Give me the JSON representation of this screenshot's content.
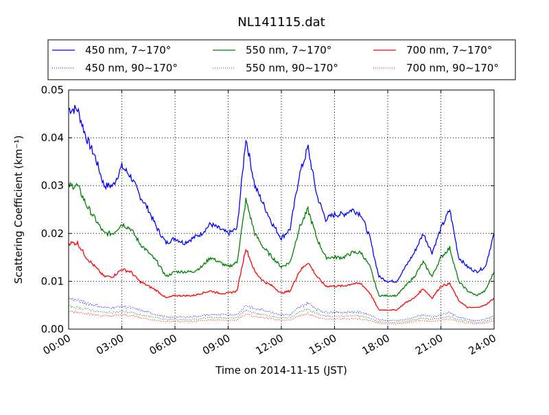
{
  "chart_data": {
    "type": "line",
    "title": "NL141115.dat",
    "xlabel": "Time on 2014-11-15 (JST)",
    "ylabel": "Scattering Coefficient (km⁻¹)",
    "xlim": [
      0,
      24
    ],
    "ylim": [
      0,
      0.05
    ],
    "grid": true,
    "legend_placement": "top, above plot, 3 columns",
    "x_ticks": [
      0,
      3,
      6,
      9,
      12,
      15,
      18,
      21,
      24
    ],
    "x_tick_labels": [
      "00:00",
      "03:00",
      "06:00",
      "09:00",
      "12:00",
      "15:00",
      "18:00",
      "21:00",
      "24:00"
    ],
    "y_ticks": [
      0,
      0.01,
      0.02,
      0.03,
      0.04,
      0.05
    ],
    "y_tick_labels": [
      "0.00",
      "0.01",
      "0.02",
      "0.03",
      "0.04",
      "0.05"
    ],
    "x_step_hours": 0.5,
    "series": [
      {
        "name": "450 nm, 7∼170°",
        "color": "#0000ff",
        "style": "solid",
        "values": [
          0.046,
          0.046,
          0.04,
          0.036,
          0.03,
          0.03,
          0.034,
          0.032,
          0.028,
          0.025,
          0.021,
          0.018,
          0.019,
          0.018,
          0.019,
          0.02,
          0.022,
          0.021,
          0.02,
          0.021,
          0.04,
          0.03,
          0.026,
          0.022,
          0.019,
          0.021,
          0.032,
          0.038,
          0.028,
          0.023,
          0.024,
          0.024,
          0.025,
          0.024,
          0.019,
          0.011,
          0.01,
          0.01,
          0.013,
          0.016,
          0.02,
          0.016,
          0.021,
          0.025,
          0.015,
          0.013,
          0.012,
          0.013,
          0.02
        ]
      },
      {
        "name": "550 nm, 7∼170°",
        "color": "#008000",
        "style": "solid",
        "values": [
          0.03,
          0.03,
          0.026,
          0.023,
          0.02,
          0.02,
          0.022,
          0.021,
          0.018,
          0.016,
          0.014,
          0.011,
          0.012,
          0.012,
          0.012,
          0.013,
          0.015,
          0.014,
          0.013,
          0.014,
          0.027,
          0.02,
          0.017,
          0.015,
          0.013,
          0.014,
          0.021,
          0.025,
          0.019,
          0.015,
          0.015,
          0.015,
          0.016,
          0.016,
          0.013,
          0.007,
          0.007,
          0.007,
          0.009,
          0.011,
          0.014,
          0.011,
          0.015,
          0.017,
          0.01,
          0.008,
          0.007,
          0.008,
          0.012
        ]
      },
      {
        "name": "700 nm, 7∼170°",
        "color": "#ff0000",
        "style": "solid",
        "values": [
          0.018,
          0.018,
          0.015,
          0.013,
          0.011,
          0.011,
          0.0125,
          0.012,
          0.01,
          0.009,
          0.008,
          0.0065,
          0.007,
          0.007,
          0.007,
          0.0075,
          0.008,
          0.0075,
          0.0075,
          0.008,
          0.017,
          0.012,
          0.01,
          0.009,
          0.0075,
          0.008,
          0.012,
          0.014,
          0.011,
          0.009,
          0.009,
          0.009,
          0.0095,
          0.0095,
          0.0075,
          0.004,
          0.004,
          0.004,
          0.0055,
          0.0065,
          0.0085,
          0.0065,
          0.009,
          0.0095,
          0.006,
          0.0045,
          0.0045,
          0.005,
          0.0065
        ]
      },
      {
        "name": "450 nm, 90∼170°",
        "color": "#0000ff",
        "style": "dotted",
        "values": [
          0.0065,
          0.006,
          0.0055,
          0.005,
          0.0045,
          0.0045,
          0.0048,
          0.0045,
          0.004,
          0.0035,
          0.003,
          0.0025,
          0.0025,
          0.0025,
          0.0026,
          0.0028,
          0.003,
          0.003,
          0.003,
          0.003,
          0.005,
          0.0042,
          0.004,
          0.0035,
          0.003,
          0.003,
          0.0045,
          0.0055,
          0.0042,
          0.0035,
          0.0035,
          0.0035,
          0.0036,
          0.0035,
          0.003,
          0.002,
          0.0018,
          0.0018,
          0.002,
          0.0025,
          0.003,
          0.0025,
          0.003,
          0.0035,
          0.0025,
          0.002,
          0.0018,
          0.002,
          0.0028
        ]
      },
      {
        "name": "550 nm, 90∼170°",
        "color": "#008000",
        "style": "dotted",
        "values": [
          0.0048,
          0.0045,
          0.0042,
          0.0038,
          0.0035,
          0.0035,
          0.0037,
          0.0035,
          0.003,
          0.0027,
          0.0023,
          0.002,
          0.002,
          0.002,
          0.002,
          0.0022,
          0.0024,
          0.0024,
          0.0023,
          0.0024,
          0.004,
          0.0033,
          0.003,
          0.0027,
          0.0023,
          0.0024,
          0.0035,
          0.0042,
          0.0032,
          0.0027,
          0.0027,
          0.0027,
          0.0028,
          0.0027,
          0.0023,
          0.0015,
          0.0014,
          0.0014,
          0.0016,
          0.002,
          0.0023,
          0.002,
          0.0024,
          0.0027,
          0.002,
          0.0016,
          0.0014,
          0.0016,
          0.0022
        ]
      },
      {
        "name": "700 nm, 90∼170°",
        "color": "#ff0000",
        "style": "dotted",
        "values": [
          0.0037,
          0.0035,
          0.0033,
          0.003,
          0.0028,
          0.0028,
          0.003,
          0.0028,
          0.0024,
          0.0021,
          0.0018,
          0.0016,
          0.0016,
          0.0016,
          0.0016,
          0.0018,
          0.0019,
          0.0019,
          0.0018,
          0.0019,
          0.0032,
          0.0026,
          0.0024,
          0.0021,
          0.0018,
          0.0019,
          0.0028,
          0.0033,
          0.0025,
          0.0021,
          0.0021,
          0.0021,
          0.0022,
          0.0021,
          0.0018,
          0.0012,
          0.0011,
          0.0011,
          0.0013,
          0.0016,
          0.0018,
          0.0016,
          0.0019,
          0.0021,
          0.0016,
          0.0013,
          0.0011,
          0.0013,
          0.0017
        ]
      }
    ]
  }
}
